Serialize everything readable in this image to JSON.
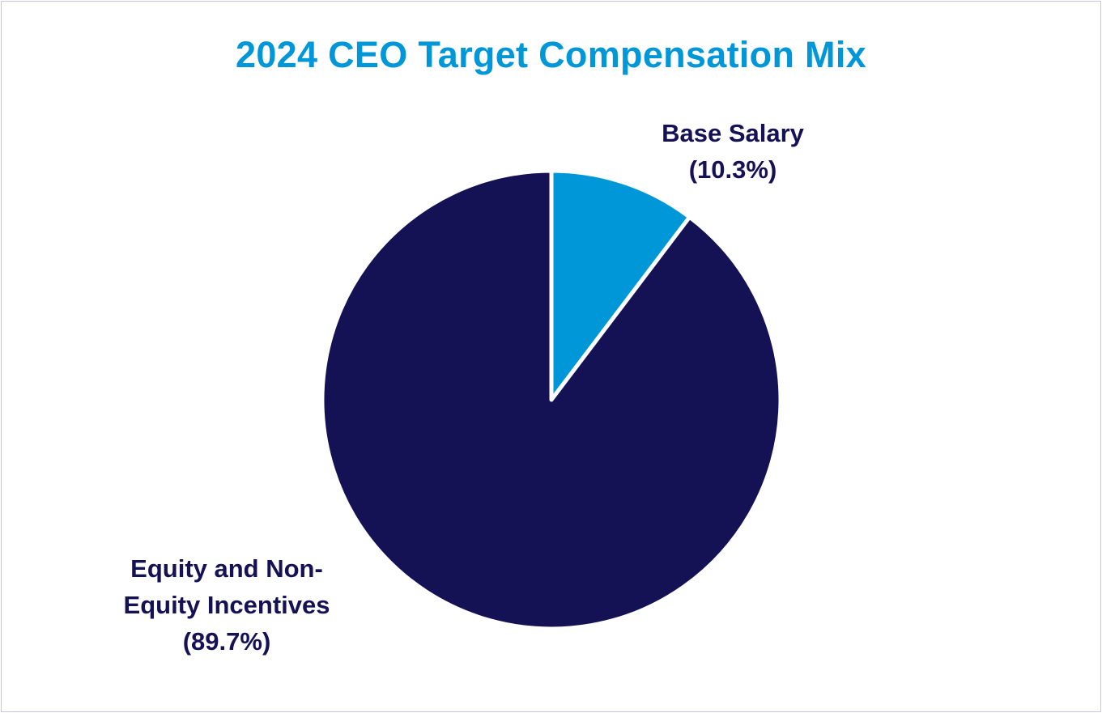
{
  "chart_data": {
    "type": "pie",
    "title": "2024 CEO Target Compensation Mix",
    "slices": [
      {
        "name": "Base Salary",
        "value": 10.3,
        "label_lines": [
          "Base Salary",
          "(10.3%)"
        ],
        "color": "#0097d8"
      },
      {
        "name": "Equity and Non-Equity Incentives",
        "value": 89.7,
        "label_lines": [
          "Equity and Non-",
          "Equity Incentives",
          "(89.7%)"
        ],
        "color": "#141155"
      }
    ],
    "start_angle": "12 o'clock",
    "direction": "clockwise",
    "slice_border_color": "#ffffff"
  },
  "colors": {
    "title": "#0097d8",
    "label_text": "#141155",
    "frame_border": "#c9c3ea",
    "background": "#ffffff"
  }
}
